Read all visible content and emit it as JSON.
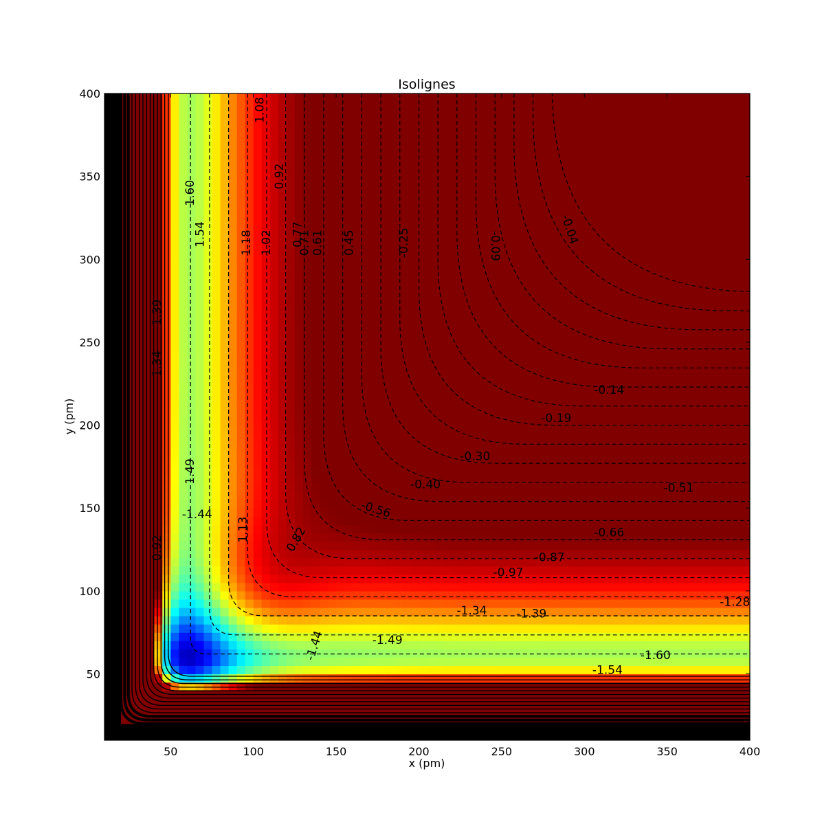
{
  "chart_data": {
    "type": "heatmap",
    "subtype": "filled-contour-with-dashed-isolines",
    "title": "Isolignes",
    "xlabel": "x (pm)",
    "ylabel": "y (pm)",
    "xlim": [
      10,
      400
    ],
    "ylim": [
      10,
      400
    ],
    "xticks": [
      50,
      100,
      150,
      200,
      250,
      300,
      350,
      400
    ],
    "yticks": [
      50,
      100,
      150,
      200,
      250,
      300,
      350,
      400
    ],
    "grid": false,
    "legend": "none",
    "colormap": "jet",
    "isoline_style": "dashed",
    "colors": {
      "isoline": "#000000",
      "deep_well": "#0010d8",
      "plateau": "#e0ff18",
      "wall_max": "#7f0000"
    },
    "contour_labels": [
      {
        "text": "1.60",
        "x": 62,
        "y": 340,
        "rotation": -90
      },
      {
        "text": "1.54",
        "x": 68,
        "y": 315,
        "rotation": -90
      },
      {
        "text": "1.18",
        "x": 96,
        "y": 310,
        "rotation": -90
      },
      {
        "text": "1.08",
        "x": 104,
        "y": 390,
        "rotation": -90
      },
      {
        "text": "1.02",
        "x": 108,
        "y": 310,
        "rotation": -90
      },
      {
        "text": "0.92",
        "x": 116,
        "y": 350,
        "rotation": -90
      },
      {
        "text": "0.77",
        "x": 127,
        "y": 315,
        "rotation": -90
      },
      {
        "text": "0.71",
        "x": 131,
        "y": 310,
        "rotation": -90
      },
      {
        "text": "0.61",
        "x": 139,
        "y": 310,
        "rotation": -90
      },
      {
        "text": "0.45",
        "x": 158,
        "y": 310,
        "rotation": -90
      },
      {
        "text": "-0.25",
        "x": 191,
        "y": 310,
        "rotation": -90
      },
      {
        "text": "-0.09",
        "x": 246,
        "y": 308,
        "rotation": 90
      },
      {
        "text": "-0.04",
        "x": 291,
        "y": 318,
        "rotation": 72
      },
      {
        "text": "-0.14",
        "x": 315,
        "y": 221,
        "rotation": 0
      },
      {
        "text": "-0.19",
        "x": 283,
        "y": 204,
        "rotation": 0
      },
      {
        "text": "-0.30",
        "x": 234,
        "y": 181,
        "rotation": 0
      },
      {
        "text": "-0.40",
        "x": 204,
        "y": 164,
        "rotation": 0
      },
      {
        "text": "-0.56",
        "x": 174,
        "y": 149,
        "rotation": 18
      },
      {
        "text": "-0.51",
        "x": 357,
        "y": 162,
        "rotation": 0
      },
      {
        "text": "-0.66",
        "x": 315,
        "y": 135,
        "rotation": 0
      },
      {
        "text": "-0.87",
        "x": 279,
        "y": 120,
        "rotation": 0
      },
      {
        "text": "-0.97",
        "x": 254,
        "y": 111,
        "rotation": 0
      },
      {
        "text": "-1.28",
        "x": 391,
        "y": 93,
        "rotation": 0
      },
      {
        "text": "-1.34",
        "x": 232,
        "y": 88,
        "rotation": 0
      },
      {
        "text": "-1.39",
        "x": 268,
        "y": 86,
        "rotation": 0
      },
      {
        "text": "-1.49",
        "x": 181,
        "y": 70,
        "rotation": 0
      },
      {
        "text": "-1.44",
        "x": 137,
        "y": 67,
        "rotation": -72
      },
      {
        "text": "-1.60",
        "x": 343,
        "y": 61,
        "rotation": 0
      },
      {
        "text": "-1.54",
        "x": 314,
        "y": 52,
        "rotation": 0
      },
      {
        "text": "-1.44",
        "x": 66,
        "y": 146,
        "rotation": 0
      },
      {
        "text": "1.49",
        "x": 62,
        "y": 172,
        "rotation": -90
      },
      {
        "text": "1.13",
        "x": 94,
        "y": 137,
        "rotation": -90
      },
      {
        "text": "0.82",
        "x": 126,
        "y": 131,
        "rotation": -60
      },
      {
        "text": "1.39",
        "x": 42,
        "y": 268,
        "rotation": -90
      },
      {
        "text": "1.34",
        "x": 42,
        "y": 237,
        "rotation": -90
      },
      {
        "text": "0.92",
        "x": 42,
        "y": 126,
        "rotation": -90
      }
    ]
  }
}
